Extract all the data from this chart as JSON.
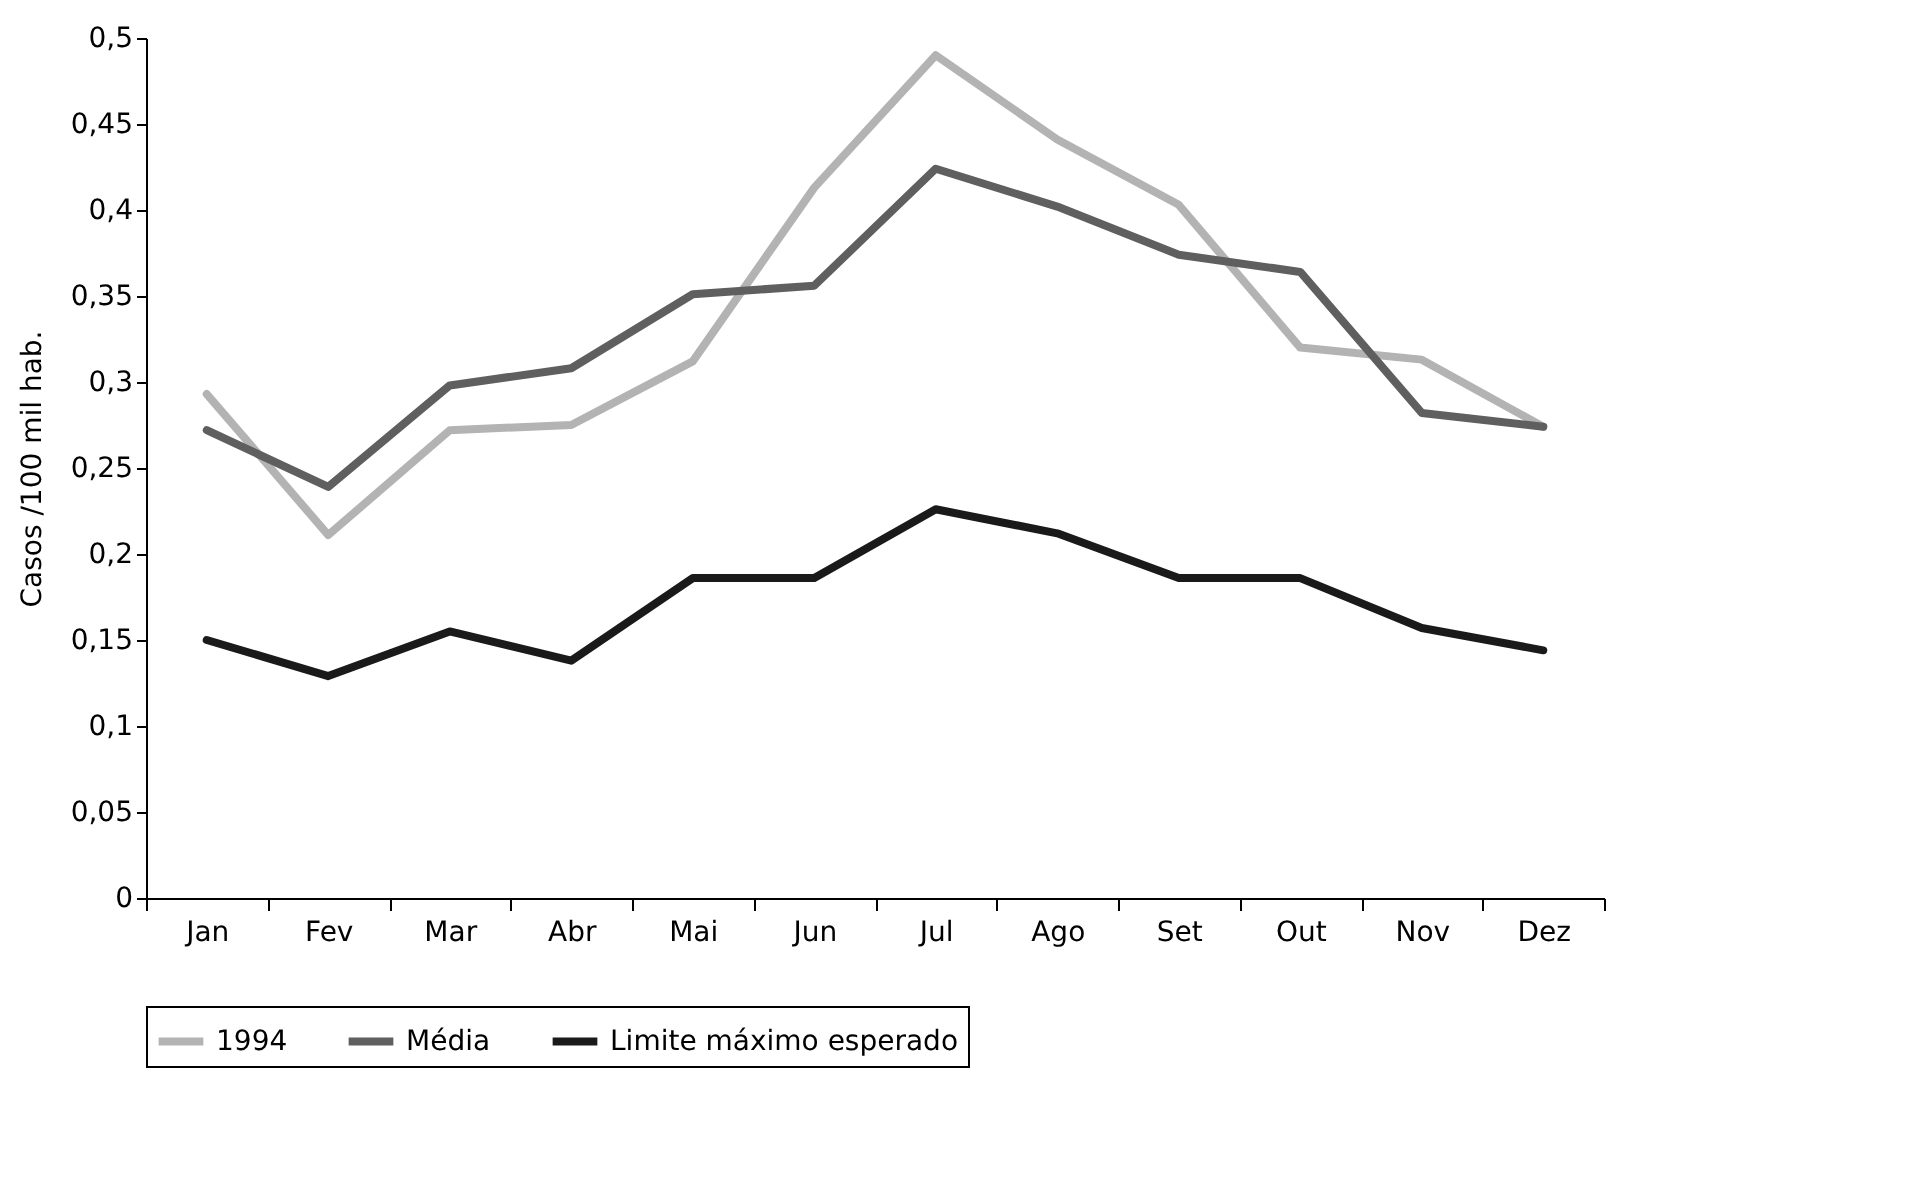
{
  "chart_data": {
    "type": "line",
    "ylabel": "Casos /100 mil hab.",
    "categories": [
      "Jan",
      "Fev",
      "Mar",
      "Abr",
      "Mai",
      "Jun",
      "Jul",
      "Ago",
      "Set",
      "Out",
      "Nov",
      "Dez"
    ],
    "series": [
      {
        "name": "1994",
        "color": "#b3b3b3",
        "values": [
          0.293,
          0.211,
          0.272,
          0.275,
          0.312,
          0.413,
          0.49,
          0.441,
          0.403,
          0.32,
          0.313,
          0.274
        ]
      },
      {
        "name": "Média",
        "color": "#5f5f5f",
        "values": [
          0.272,
          0.239,
          0.298,
          0.308,
          0.351,
          0.356,
          0.424,
          0.402,
          0.374,
          0.364,
          0.282,
          0.274
        ]
      },
      {
        "name": "Limite máximo esperado",
        "color": "#1a1a1a",
        "values": [
          0.15,
          0.129,
          0.155,
          0.138,
          0.186,
          0.186,
          0.226,
          0.212,
          0.186,
          0.186,
          0.157,
          0.144
        ]
      }
    ],
    "ylim": [
      0,
      0.5
    ],
    "yticks": [
      {
        "value": 0,
        "label": "0"
      },
      {
        "value": 0.05,
        "label": "0,05"
      },
      {
        "value": 0.1,
        "label": "0,1"
      },
      {
        "value": 0.15,
        "label": "0,15"
      },
      {
        "value": 0.2,
        "label": "0,2"
      },
      {
        "value": 0.25,
        "label": "0,25"
      },
      {
        "value": 0.3,
        "label": "0,3"
      },
      {
        "value": 0.35,
        "label": "0,35"
      },
      {
        "value": 0.4,
        "label": "0,4"
      },
      {
        "value": 0.45,
        "label": "0,45"
      },
      {
        "value": 0.5,
        "label": "0,5"
      }
    ],
    "grid": false,
    "legend": "bottom",
    "marker": "none",
    "line_style": "solid"
  }
}
